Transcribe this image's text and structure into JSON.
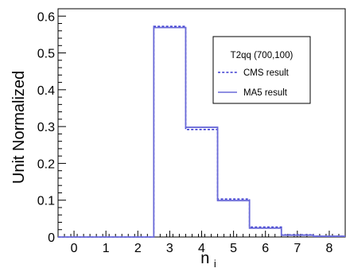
{
  "chart_data": {
    "type": "histogram",
    "xlabel_main": "n",
    "xlabel_sub": "i",
    "ylabel": "Unit Normalized",
    "xlim": [
      -0.5,
      8.5
    ],
    "ylim": [
      0,
      0.62
    ],
    "x_ticks": [
      0,
      1,
      2,
      3,
      4,
      5,
      6,
      7,
      8
    ],
    "y_ticks": [
      0,
      0.1,
      0.2,
      0.3,
      0.4,
      0.5,
      0.6
    ],
    "y_tick_labels": [
      "0",
      "0.1",
      "0.2",
      "0.3",
      "0.4",
      "0.5",
      "0.6"
    ],
    "bin_edges": [
      -0.5,
      0.5,
      1.5,
      2.5,
      3.5,
      4.5,
      5.5,
      6.5,
      7.5,
      8.5
    ],
    "legend": {
      "title": "T2qq (700,100)",
      "position": "top-right"
    },
    "series": [
      {
        "name": "CMS result",
        "style": "dashed",
        "color": "#3a3ad0",
        "values": [
          0,
          0,
          0,
          0.572,
          0.292,
          0.103,
          0.027,
          0.006,
          0.002
        ]
      },
      {
        "name": "MA5 result",
        "style": "solid",
        "color": "#6a6ad8",
        "values": [
          0,
          0,
          0,
          0.569,
          0.298,
          0.099,
          0.024,
          0.005,
          0.002
        ]
      }
    ]
  }
}
